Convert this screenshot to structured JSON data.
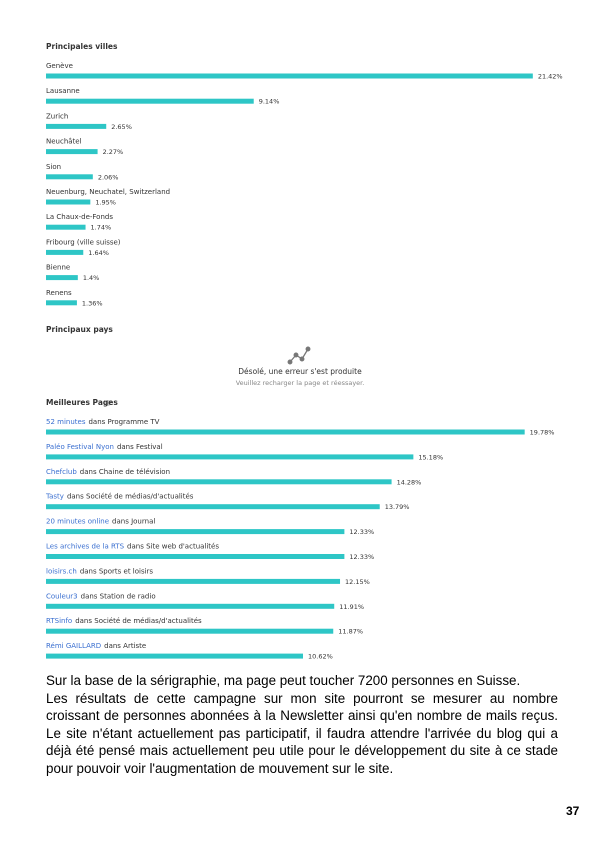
{
  "chart_data": [
    {
      "type": "hbar",
      "title": "Principales villes",
      "categories": [
        "Genève",
        "Lausanne",
        "Zurich",
        "Neuchâtel",
        "Sion",
        "Neuenburg, Neuchatel, Switzerland",
        "La Chaux-de-Fonds",
        "Fribourg (ville suisse)",
        "Bienne",
        "Renens"
      ],
      "values": [
        21.42,
        9.14,
        2.65,
        2.27,
        2.06,
        1.95,
        1.74,
        1.64,
        1.4,
        1.36
      ],
      "value_labels": [
        "21.42%",
        "9.14%",
        "2.65%",
        "2.27%",
        "2.06%",
        "1.95%",
        "1.74%",
        "1.64%",
        "1.4%",
        "1.36%"
      ],
      "color": "#2ec6c6",
      "xlim": [
        0,
        22
      ]
    },
    {
      "type": "hbar",
      "title": "Meilleures Pages",
      "categories": [
        "52 minutes",
        "Paléo Festival Nyon",
        "Chefclub",
        "Tasty",
        "20 minutes online",
        "Les archives de la RTS",
        "loisirs.ch",
        "Couleur3",
        "RTSinfo",
        "Rémi GAILLARD"
      ],
      "details": [
        "dans Programme TV",
        "dans Festival",
        "dans Chaine de télévision",
        "dans Société de médias/d'actualités",
        "dans Journal",
        "dans Site web d'actualités",
        "dans Sports et loisirs",
        "dans Station de radio",
        "dans Société de médias/d'actualités",
        "dans Artiste"
      ],
      "values": [
        19.78,
        15.18,
        14.28,
        13.79,
        12.33,
        12.33,
        12.15,
        11.91,
        11.87,
        10.62
      ],
      "value_labels": [
        "19.78%",
        "15.18%",
        "14.28%",
        "13.79%",
        "12.33%",
        "12.33%",
        "12.15%",
        "11.91%",
        "11.87%",
        "10.62%"
      ],
      "color": "#2ec6c6",
      "xlim": [
        0,
        20
      ]
    }
  ],
  "countries": {
    "title": "Principaux pays",
    "error": "Désolé, une erreur s'est produite",
    "hint": "Veuillez recharger la page et réessayer."
  },
  "paragraphs": [
    "Sur la base de la sérigraphie, ma page peut toucher 7200 personnes en Suisse.",
    "Les résultats de cette campagne sur mon site pourront se mesurer au nombre croissant de personnes abonnées à la Newsletter ainsi qu'en nombre de mails reçus. Le site n'étant actuellement pas participatif, il faudra attendre l'arrivée du blog qui a déjà été pensé mais actuellement peu utile pour le développement du site à ce stade pour pouvoir voir l'augmentation de mouvement sur le site."
  ],
  "page_number": "37"
}
